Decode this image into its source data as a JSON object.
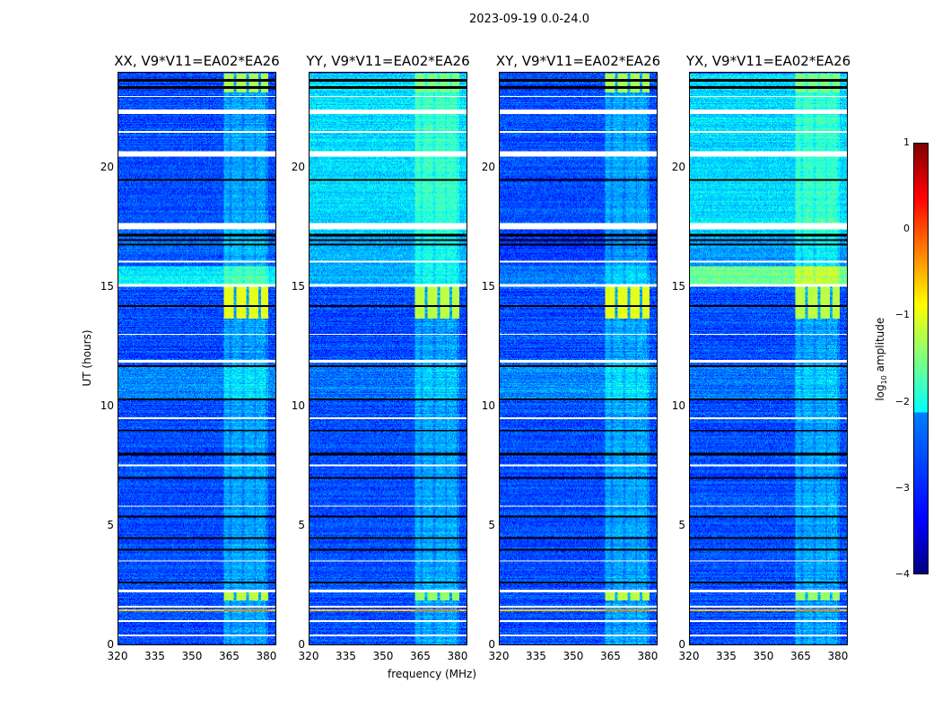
{
  "suptitle": "2023-09-19 0.0-24.0",
  "chart_data": {
    "type": "heatmap",
    "title": "2023-09-19 0.0-24.0",
    "xlabel": "frequency (MHz)",
    "ylabel": "UT (hours)",
    "xlim": [
      320,
      384
    ],
    "ylim": [
      0,
      24
    ],
    "xticks": [
      "320",
      "335",
      "350",
      "365",
      "380"
    ],
    "yticks": [
      "0",
      "5",
      "10",
      "15",
      "20"
    ],
    "colorbar": {
      "label": "log10 amplitude",
      "label_main": "log",
      "label_sub": "10",
      "label_rest": " amplitude",
      "range": [
        -4,
        1
      ],
      "ticks": [
        "1",
        "0",
        "−1",
        "−2",
        "−3",
        "−4"
      ],
      "colormap": "jet"
    },
    "rfi_band_mhz": [
      363,
      381
    ],
    "flagged_hours": [
      [
        0.35,
        0.42
      ],
      [
        0.95,
        1.02
      ],
      [
        1.55,
        1.65
      ],
      [
        2.2,
        2.32
      ],
      [
        3.5,
        3.55
      ],
      [
        5.8,
        5.85
      ],
      [
        7.5,
        7.56
      ],
      [
        9.5,
        9.55
      ],
      [
        11.85,
        11.95
      ],
      [
        13.0,
        13.06
      ],
      [
        15.05,
        15.15
      ],
      [
        16.05,
        16.15
      ],
      [
        17.45,
        17.72
      ],
      [
        20.5,
        20.72
      ],
      [
        21.5,
        21.56
      ],
      [
        22.3,
        22.48
      ],
      [
        23.0,
        23.05
      ]
    ],
    "dropout_hours": [
      2.6,
      4.0,
      4.5,
      5.4,
      7.0,
      8.0,
      9.0,
      10.3,
      11.7,
      14.2,
      16.8,
      17.0,
      17.2,
      19.5,
      23.4,
      23.7
    ],
    "strong_rfi_rows": [
      {
        "hours": [
          1.4,
          1.5
        ],
        "level": -0.3
      }
    ],
    "rfi_bursts": [
      {
        "hours": [
          13.7,
          15.05
        ],
        "level": -1.0
      },
      {
        "hours": [
          1.85,
          2.2
        ],
        "level": -1.2
      },
      {
        "hours": [
          23.2,
          24
        ],
        "level": -1.3
      }
    ],
    "panels": [
      {
        "title": "XX, V9*V11=EA02*EA26",
        "segments": [
          [
            0,
            10.3,
            -3.0
          ],
          [
            10.3,
            11.7,
            -2.7
          ],
          [
            11.7,
            15.1,
            -3.0
          ],
          [
            15.1,
            15.9,
            -2.2
          ],
          [
            15.9,
            17.5,
            -2.9
          ],
          [
            17.5,
            24,
            -3.0
          ]
        ]
      },
      {
        "title": "YY, V9*V11=EA02*EA26",
        "segments": [
          [
            0,
            10.3,
            -3.0
          ],
          [
            10.3,
            11.7,
            -2.8
          ],
          [
            11.7,
            15.1,
            -3.0
          ],
          [
            15.1,
            17.2,
            -2.5
          ],
          [
            17.2,
            24,
            -2.3
          ]
        ]
      },
      {
        "title": "XY, V9*V11=EA02*EA26",
        "segments": [
          [
            0,
            10.3,
            -3.0
          ],
          [
            10.3,
            11.7,
            -2.7
          ],
          [
            11.7,
            15.1,
            -3.0
          ],
          [
            15.1,
            15.9,
            -2.8
          ],
          [
            15.9,
            17.5,
            -3.1
          ],
          [
            17.5,
            24,
            -3.0
          ]
        ]
      },
      {
        "title": "YX, V9*V11=EA02*EA26",
        "segments": [
          [
            0,
            10.3,
            -3.0
          ],
          [
            10.3,
            11.7,
            -2.8
          ],
          [
            11.7,
            15.1,
            -3.0
          ],
          [
            15.1,
            15.9,
            -1.6
          ],
          [
            15.9,
            17.2,
            -2.6
          ],
          [
            17.2,
            24,
            -2.3
          ]
        ]
      }
    ]
  }
}
